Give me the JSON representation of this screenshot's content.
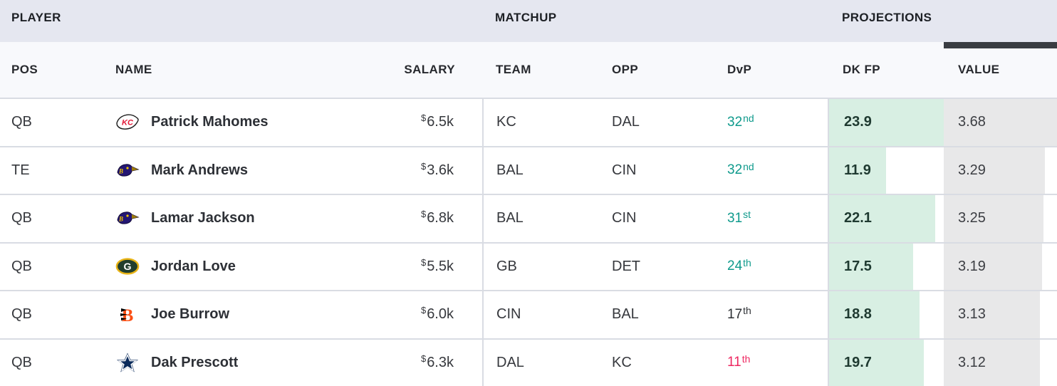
{
  "table": {
    "group_headers": {
      "player": "PLAYER",
      "matchup": "MATCHUP",
      "projections": "PROJECTIONS"
    },
    "columns": {
      "pos": "POS",
      "name": "NAME",
      "salary": "SALARY",
      "team": "TEAM",
      "opp": "OPP",
      "dvp": "DvP",
      "dk_fp": "DK FP",
      "value": "VALUE"
    },
    "sort": {
      "column": "VALUE",
      "indicator_color": "#3a3d42"
    },
    "colors": {
      "group_header_bg": "#e5e7f0",
      "col_header_bg": "#f8f9fc",
      "row_border": "#d9dce3",
      "fp_bar": "#d8efe3",
      "value_bar": "#e8e8e9",
      "dvp_good": "#0f9a8c",
      "dvp_neutral": "#2e3135",
      "dvp_bad": "#ee2760"
    },
    "rows": [
      {
        "pos": "QB",
        "name": "Patrick Mahomes",
        "team_logo": "chiefs-logo",
        "salary_currency": "$",
        "salary": "6.5k",
        "team": "KC",
        "opp": "DAL",
        "dvp_rank": "32",
        "dvp_ordinal": "nd",
        "dvp_tone": "good",
        "dk_fp": "23.9",
        "value": "3.68",
        "fp_bar_pct": 100,
        "value_bar_pct": 100
      },
      {
        "pos": "TE",
        "name": "Mark Andrews",
        "team_logo": "ravens-logo",
        "salary_currency": "$",
        "salary": "3.6k",
        "team": "BAL",
        "opp": "CIN",
        "dvp_rank": "32",
        "dvp_ordinal": "nd",
        "dvp_tone": "good",
        "dk_fp": "11.9",
        "value": "3.29",
        "fp_bar_pct": 49.8,
        "value_bar_pct": 89.4
      },
      {
        "pos": "QB",
        "name": "Lamar Jackson",
        "team_logo": "ravens-logo",
        "salary_currency": "$",
        "salary": "6.8k",
        "team": "BAL",
        "opp": "CIN",
        "dvp_rank": "31",
        "dvp_ordinal": "st",
        "dvp_tone": "good",
        "dk_fp": "22.1",
        "value": "3.25",
        "fp_bar_pct": 92.5,
        "value_bar_pct": 88.3
      },
      {
        "pos": "QB",
        "name": "Jordan Love",
        "team_logo": "packers-logo",
        "salary_currency": "$",
        "salary": "5.5k",
        "team": "GB",
        "opp": "DET",
        "dvp_rank": "24",
        "dvp_ordinal": "th",
        "dvp_tone": "good",
        "dk_fp": "17.5",
        "value": "3.19",
        "fp_bar_pct": 73.2,
        "value_bar_pct": 86.7
      },
      {
        "pos": "QB",
        "name": "Joe Burrow",
        "team_logo": "bengals-logo",
        "salary_currency": "$",
        "salary": "6.0k",
        "team": "CIN",
        "opp": "BAL",
        "dvp_rank": "17",
        "dvp_ordinal": "th",
        "dvp_tone": "neutral",
        "dk_fp": "18.8",
        "value": "3.13",
        "fp_bar_pct": 78.7,
        "value_bar_pct": 85.1
      },
      {
        "pos": "QB",
        "name": "Dak Prescott",
        "team_logo": "cowboys-logo",
        "salary_currency": "$",
        "salary": "6.3k",
        "team": "DAL",
        "opp": "KC",
        "dvp_rank": "11",
        "dvp_ordinal": "th",
        "dvp_tone": "bad",
        "dk_fp": "19.7",
        "value": "3.12",
        "fp_bar_pct": 82.4,
        "value_bar_pct": 84.8
      }
    ]
  }
}
